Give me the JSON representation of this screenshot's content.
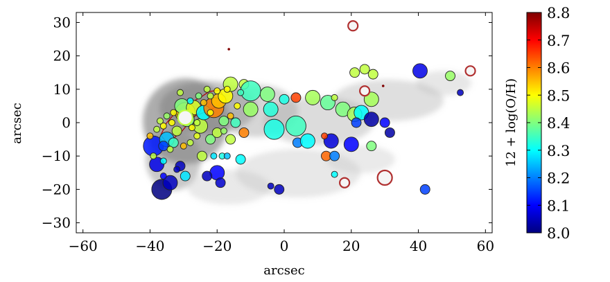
{
  "chart_data": {
    "type": "scatter",
    "title": "",
    "xlabel": "arcsec",
    "ylabel": "arcsec",
    "xlim": [
      -62,
      62
    ],
    "ylim": [
      -33,
      33
    ],
    "x_ticks": [
      -60,
      -40,
      -20,
      0,
      20,
      40,
      60
    ],
    "x_tick_labels": [
      "−60",
      "−40",
      "−20",
      "0",
      "20",
      "40",
      "60"
    ],
    "y_ticks": [
      30,
      20,
      10,
      0,
      -10,
      -20,
      -30
    ],
    "y_tick_labels": [
      "30",
      "20",
      "10",
      "0",
      "−10",
      "−20",
      "−30"
    ],
    "grid": false,
    "background": "grayscale galaxy image",
    "colorbar": {
      "label": "12 + log(O/H)",
      "min": 8.0,
      "max": 8.8,
      "ticks": [
        8.8,
        8.7,
        8.6,
        8.5,
        8.4,
        8.3,
        8.2,
        8.1,
        8.0
      ],
      "tick_labels": [
        "8.8",
        "8.7",
        "8.6",
        "8.5",
        "8.4",
        "8.3",
        "8.2",
        "8.1",
        "8.0"
      ],
      "colormap": "jet"
    },
    "points": [
      {
        "x": -39,
        "y": -7,
        "z": 8.12,
        "s": 3
      },
      {
        "x": -36.5,
        "y": -20,
        "z": 8.0,
        "s": 3
      },
      {
        "x": -38,
        "y": -12.5,
        "z": 8.08,
        "s": 2
      },
      {
        "x": -34,
        "y": -18,
        "z": 8.05,
        "s": 2
      },
      {
        "x": -35,
        "y": -5,
        "z": 8.25,
        "s": 2
      },
      {
        "x": -31,
        "y": -13,
        "z": 8.05,
        "s": 1
      },
      {
        "x": -29.5,
        "y": -16,
        "z": 8.28,
        "s": 1
      },
      {
        "x": -29.5,
        "y": 3,
        "z": 8.55,
        "s": 3
      },
      {
        "x": -29,
        "y": 1,
        "z": 8.4,
        "s": 2
      },
      {
        "x": -30.5,
        "y": 5,
        "z": 8.4,
        "s": 2
      },
      {
        "x": -27,
        "y": 4.5,
        "z": 8.47,
        "s": 2
      },
      {
        "x": -25,
        "y": -1,
        "z": 8.45,
        "s": 2
      },
      {
        "x": -24,
        "y": 3,
        "z": 8.3,
        "s": 2
      },
      {
        "x": -21,
        "y": 4.5,
        "z": 8.6,
        "s": 3
      },
      {
        "x": -19.5,
        "y": 6.5,
        "z": 8.55,
        "s": 2
      },
      {
        "x": -17.5,
        "y": 8,
        "z": 8.5,
        "s": 2
      },
      {
        "x": -16,
        "y": 11.5,
        "z": 8.45,
        "s": 2
      },
      {
        "x": -12,
        "y": 11.5,
        "z": 8.45,
        "s": 1
      },
      {
        "x": -10,
        "y": 9.5,
        "z": 8.35,
        "s": 3
      },
      {
        "x": -10,
        "y": 4,
        "z": 8.42,
        "s": 2
      },
      {
        "x": -5,
        "y": 8.5,
        "z": 8.4,
        "s": 2
      },
      {
        "x": -4,
        "y": 4,
        "z": 8.33,
        "s": 2
      },
      {
        "x": -3,
        "y": -2,
        "z": 8.32,
        "s": 3
      },
      {
        "x": 0,
        "y": 7,
        "z": 8.32,
        "s": 1
      },
      {
        "x": 3.5,
        "y": -1,
        "z": 8.35,
        "s": 3
      },
      {
        "x": 3.5,
        "y": 7.5,
        "z": 8.65,
        "s": 1
      },
      {
        "x": 4,
        "y": -6,
        "z": 8.2,
        "s": 1
      },
      {
        "x": 7,
        "y": -5.5,
        "z": 8.3,
        "s": 2
      },
      {
        "x": 8.5,
        "y": 7.5,
        "z": 8.43,
        "s": 2
      },
      {
        "x": 13,
        "y": 6,
        "z": 8.38,
        "s": 2
      },
      {
        "x": 14,
        "y": -5.5,
        "z": 8.07,
        "s": 2
      },
      {
        "x": 12.5,
        "y": -10,
        "z": 8.62,
        "s": 1
      },
      {
        "x": 12,
        "y": -4,
        "z": 8.65,
        "s": 0
      },
      {
        "x": 15,
        "y": -10,
        "z": 8.2,
        "s": 1
      },
      {
        "x": 15,
        "y": -15.5,
        "z": 8.3,
        "s": 0
      },
      {
        "x": 15,
        "y": 7.5,
        "z": 8.45,
        "s": 0
      },
      {
        "x": 17.5,
        "y": 4,
        "z": 8.4,
        "s": 2
      },
      {
        "x": 20,
        "y": -6.5,
        "z": 8.1,
        "s": 2
      },
      {
        "x": 21,
        "y": 2.5,
        "z": 8.43,
        "s": 2
      },
      {
        "x": 21,
        "y": 15,
        "z": 8.45,
        "s": 1
      },
      {
        "x": 23,
        "y": 3,
        "z": 8.3,
        "s": 2
      },
      {
        "x": 21.5,
        "y": 0,
        "z": 8.15,
        "s": 1
      },
      {
        "x": 24,
        "y": 16,
        "z": 8.45,
        "s": 1
      },
      {
        "x": 26,
        "y": 1,
        "z": 8.03,
        "s": 2
      },
      {
        "x": 26,
        "y": 7,
        "z": 8.43,
        "s": 2
      },
      {
        "x": 26,
        "y": -7,
        "z": 8.4,
        "s": 1
      },
      {
        "x": 26.5,
        "y": 14.5,
        "z": 8.45,
        "s": 1
      },
      {
        "x": 31.5,
        "y": -3,
        "z": 8.03,
        "s": 1
      },
      {
        "x": 30,
        "y": 0,
        "z": 8.1,
        "s": 1
      },
      {
        "x": 40.5,
        "y": 15.5,
        "z": 8.08,
        "s": 2
      },
      {
        "x": 42,
        "y": -20,
        "z": 8.15,
        "s": 1
      },
      {
        "x": 49.5,
        "y": 14,
        "z": 8.42,
        "s": 1
      },
      {
        "x": 52.5,
        "y": 9,
        "z": 8.05,
        "s": 0
      },
      {
        "x": -20,
        "y": -15,
        "z": 8.1,
        "s": 2
      },
      {
        "x": -19,
        "y": -18,
        "z": 8.06,
        "s": 1
      },
      {
        "x": -14.5,
        "y": 0,
        "z": 8.35,
        "s": 1
      },
      {
        "x": -13,
        "y": -11,
        "z": 8.3,
        "s": 1
      },
      {
        "x": -12,
        "y": -3,
        "z": 8.6,
        "s": 1
      },
      {
        "x": -16,
        "y": -5,
        "z": 8.45,
        "s": 1
      },
      {
        "x": -23,
        "y": -16,
        "z": 8.05,
        "s": 1
      },
      {
        "x": -24.5,
        "y": -10,
        "z": 8.45,
        "s": 1
      },
      {
        "x": -32,
        "y": -2.5,
        "z": 8.45,
        "s": 1
      },
      {
        "x": -33,
        "y": -6,
        "z": 8.35,
        "s": 1
      },
      {
        "x": -36,
        "y": -7,
        "z": 8.15,
        "s": 1
      },
      {
        "x": -22,
        "y": -5,
        "z": 8.4,
        "s": 1
      },
      {
        "x": -20,
        "y": -3,
        "z": 8.45,
        "s": 1
      },
      {
        "x": -18,
        "y": 0.5,
        "z": 8.4,
        "s": 1
      },
      {
        "x": -1.5,
        "y": -20,
        "z": 8.05,
        "s": 1
      },
      {
        "x": -4,
        "y": -19,
        "z": 8.05,
        "s": 0
      },
      {
        "x": -26,
        "y": 0,
        "z": 8.45,
        "s": 0
      },
      {
        "x": -28,
        "y": 6.5,
        "z": 8.3,
        "s": 0
      },
      {
        "x": -22,
        "y": 8,
        "z": 8.45,
        "s": 0
      },
      {
        "x": -17,
        "y": 10,
        "z": 8.5,
        "s": 0
      },
      {
        "x": -40,
        "y": -4,
        "z": 8.55,
        "s": 0
      },
      {
        "x": -38,
        "y": -2,
        "z": 8.45,
        "s": 0
      },
      {
        "x": -31,
        "y": 9,
        "z": 8.45,
        "s": 0
      },
      {
        "x": -33,
        "y": 3,
        "z": 8.5,
        "s": 0
      },
      {
        "x": -27.5,
        "y": -1.5,
        "z": 8.5,
        "s": 0
      },
      {
        "x": -36,
        "y": -1,
        "z": 8.5,
        "s": 0
      },
      {
        "x": -34,
        "y": -8,
        "z": 8.45,
        "s": 0
      },
      {
        "x": -30,
        "y": -7,
        "z": 8.55,
        "s": 0
      },
      {
        "x": -28,
        "y": -6,
        "z": 8.45,
        "s": 0
      },
      {
        "x": -26,
        "y": -4,
        "z": 8.48,
        "s": 0
      },
      {
        "x": -22,
        "y": 3,
        "z": 8.5,
        "s": 0
      },
      {
        "x": -20,
        "y": 9.5,
        "z": 8.5,
        "s": 0
      },
      {
        "x": -23,
        "y": 10,
        "z": 8.45,
        "s": 0
      },
      {
        "x": -25.5,
        "y": 8,
        "z": 8.4,
        "s": 0
      },
      {
        "x": -24,
        "y": 6,
        "z": 8.55,
        "s": 0
      },
      {
        "x": -18,
        "y": -2.5,
        "z": 8.42,
        "s": 0
      },
      {
        "x": -16,
        "y": 2,
        "z": 8.55,
        "s": 0
      },
      {
        "x": -18.5,
        "y": -10,
        "z": 8.32,
        "s": 0
      },
      {
        "x": -17,
        "y": -10,
        "z": 8.25,
        "s": 0
      },
      {
        "x": -21,
        "y": -10,
        "z": 8.28,
        "s": 0
      },
      {
        "x": -39,
        "y": -10,
        "z": 8.45,
        "s": 0
      },
      {
        "x": -36,
        "y": -11.5,
        "z": 8.3,
        "s": 0
      },
      {
        "x": -37,
        "y": 0.5,
        "z": 8.45,
        "s": 0
      },
      {
        "x": -32,
        "y": -14,
        "z": 8.05,
        "s": 0
      },
      {
        "x": -36,
        "y": -16,
        "z": 8.1,
        "s": 0
      },
      {
        "x": -13,
        "y": 9,
        "z": 8.35,
        "s": 0
      },
      {
        "x": -14,
        "y": 5,
        "z": 8.5,
        "s": 0
      },
      {
        "x": -31,
        "y": 2,
        "z": 8.6,
        "s": 0
      },
      {
        "x": -28,
        "y": 2,
        "z": 8.7,
        "s": 0
      },
      {
        "x": -33.5,
        "y": 0,
        "z": 8.5,
        "s": 0
      },
      {
        "x": -35,
        "y": 2,
        "z": 8.42,
        "s": 0
      }
    ],
    "rings": [
      {
        "x": 20.5,
        "y": 29,
        "r": 1,
        "z": 8.8
      },
      {
        "x": 24,
        "y": 9.5,
        "r": 1,
        "z": 8.8
      },
      {
        "x": 18,
        "y": -18,
        "r": 1,
        "z": 8.8
      },
      {
        "x": 30,
        "y": -16.5,
        "r": 2,
        "z": 8.8
      },
      {
        "x": 55.5,
        "y": 15.5,
        "r": 1,
        "z": 8.8
      },
      {
        "x": -29.5,
        "y": 1.5,
        "r": 2,
        "z": 8.45
      }
    ],
    "tiny_points": [
      {
        "x": -16.5,
        "y": 22,
        "z": 8.8
      },
      {
        "x": 29.5,
        "y": 11,
        "z": 8.8
      }
    ]
  }
}
